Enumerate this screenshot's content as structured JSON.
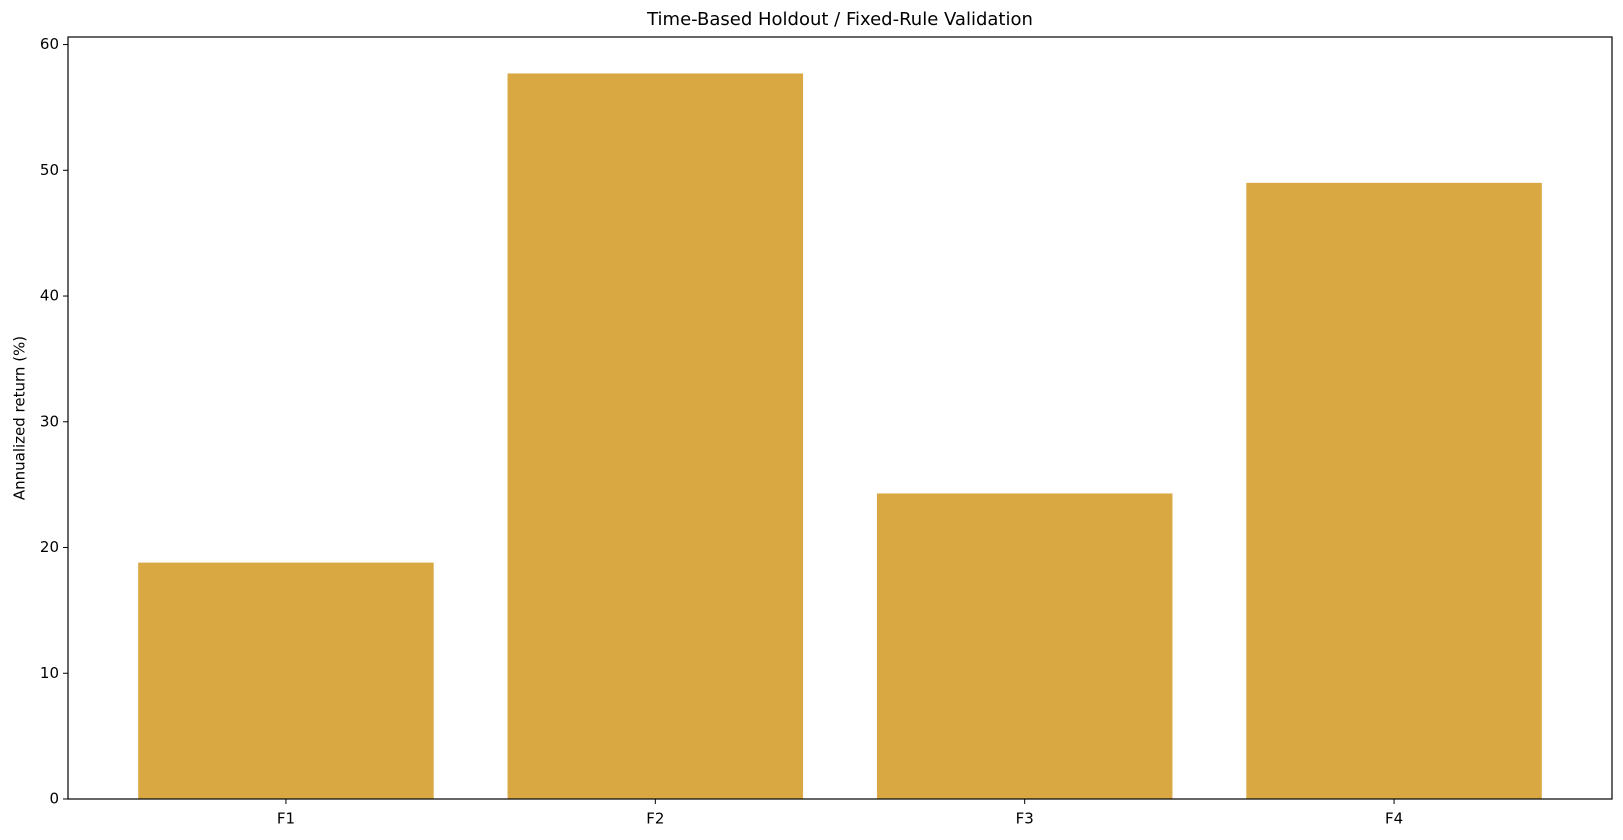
{
  "chart_data": {
    "type": "bar",
    "title": "Time-Based Holdout / Fixed-Rule Validation",
    "y_label": "Annualized return (%)",
    "categories": [
      "F1",
      "F2",
      "F3",
      "F4"
    ],
    "values": [
      18.8,
      57.7,
      24.3,
      49.0
    ],
    "color": "#d9a843",
    "ylim": [
      0,
      60.6
    ],
    "yticks": [
      0,
      10,
      20,
      30,
      40,
      50,
      60
    ],
    "grid": false
  }
}
